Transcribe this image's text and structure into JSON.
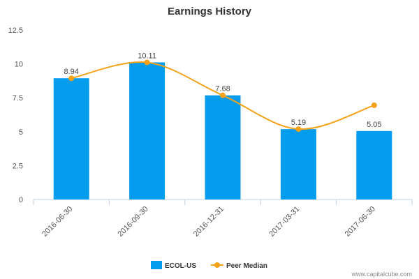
{
  "chart_data": {
    "type": "bar",
    "title": "Earnings History",
    "categories": [
      "2016-06-30",
      "2016-09-30",
      "2016-12-31",
      "2017-03-31",
      "2017-06-30"
    ],
    "series": [
      {
        "name": "ECOL-US",
        "type": "bar",
        "values": [
          8.94,
          10.11,
          7.68,
          5.19,
          5.05
        ],
        "data_labels": [
          "8.94",
          "10.11",
          "7.68",
          "5.19",
          "5.05"
        ]
      },
      {
        "name": "Peer Median",
        "type": "line",
        "values": [
          8.94,
          10.11,
          7.68,
          5.19,
          6.95
        ]
      }
    ],
    "ylim": [
      0,
      12.5
    ],
    "yticks": [
      "0",
      "2.5",
      "5",
      "7.5",
      "10",
      "12.5"
    ],
    "ytick_values": [
      0,
      2.5,
      5,
      7.5,
      10,
      12.5
    ],
    "grid": false,
    "legend_position": "bottom-center"
  },
  "colors": {
    "bar": "#049ded",
    "line": "#f5a21a",
    "axis": "#c0d0e0"
  },
  "credit": "www.capitalcube.com"
}
